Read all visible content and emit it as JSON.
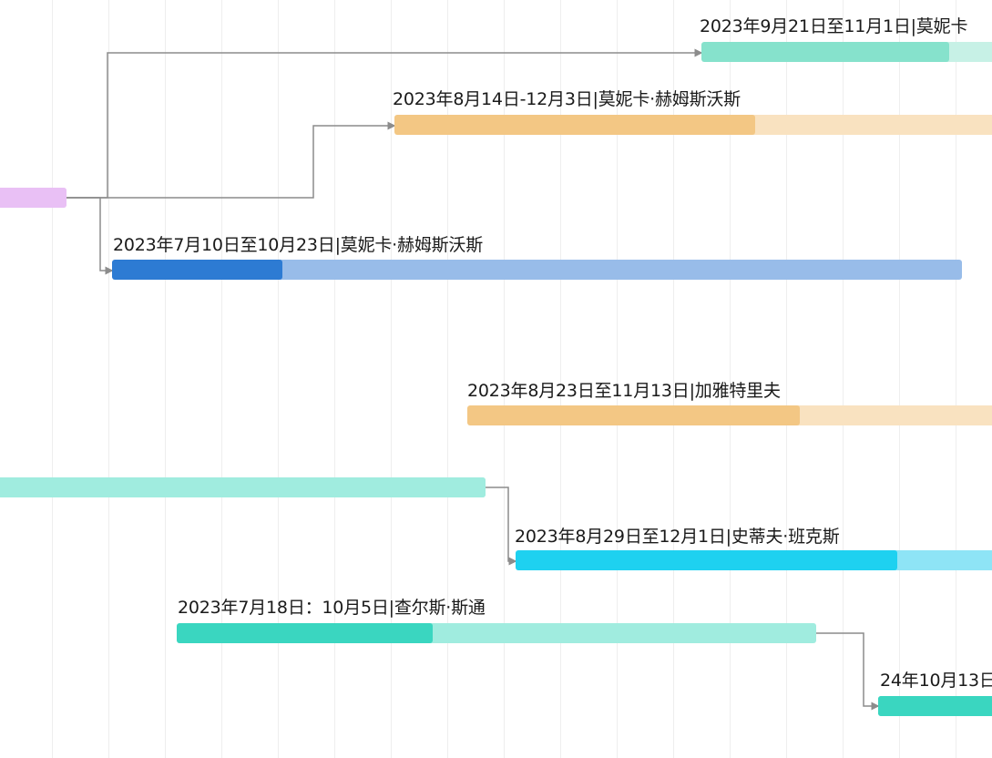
{
  "colors": {
    "grid": "#eeeeee",
    "connector": "#8c8c8c",
    "label_text": "#1a1a1a"
  },
  "tasks": [
    {
      "id": "t1",
      "label": "2023年9月21日至11月1日|莫妮卡",
      "progress": 0.8,
      "track_color": "#c7f1e6",
      "progress_color": "#86e2cc"
    },
    {
      "id": "t2",
      "label": "2023年8月14日-12月3日|莫妮卡·赫姆斯沃斯",
      "progress": 0.6,
      "track_color": "#f9e2c0",
      "progress_color": "#f3c784"
    },
    {
      "id": "t3",
      "label": "",
      "progress": 1.0,
      "track_color": "#e9c0f5",
      "progress_color": "#e9c0f5"
    },
    {
      "id": "t4",
      "label": "2023年7月10日至10月23日|莫妮卡·赫姆斯沃斯",
      "progress": 0.2,
      "track_color": "#98bce9",
      "progress_color": "#2d7bd3"
    },
    {
      "id": "t5",
      "label": "2023年8月23日至11月13日|加雅特里夫",
      "progress": 0.63,
      "track_color": "#f9e2c0",
      "progress_color": "#f3c784"
    },
    {
      "id": "t6",
      "label": "",
      "progress": 1.0,
      "track_color": "#a0ecdf",
      "progress_color": "#a0ecdf"
    },
    {
      "id": "t7",
      "label": "2023年8月29日至12月1日|史蒂夫·班克斯",
      "progress": 0.79,
      "track_color": "#8ee4f6",
      "progress_color": "#1ed1f0"
    },
    {
      "id": "t8",
      "label": "2023年7月18日：10月5日|查尔斯·斯通",
      "progress": 0.4,
      "track_color": "#a0ecdf",
      "progress_color": "#3ad6c0"
    },
    {
      "id": "t9",
      "label": "24年10月13日",
      "progress": 1.0,
      "track_color": "#3ad6c0",
      "progress_color": "#3ad6c0"
    }
  ]
}
